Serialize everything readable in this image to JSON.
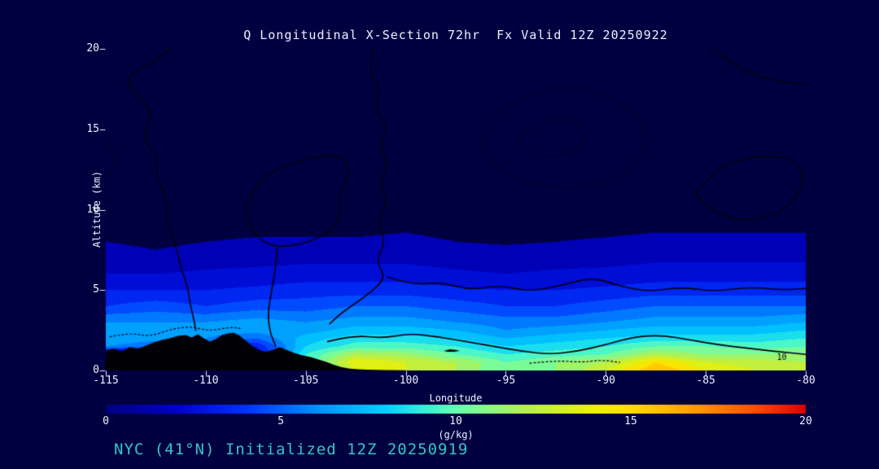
{
  "title": "Q Longitudinal X-Section 72hr  Fx Valid 12Z 20250922",
  "annotation": "NYC (41°N) Initialized 12Z 20250919",
  "colors": {
    "background": "#000041",
    "text": "#f0f0ff",
    "annotation": "#35c4c4",
    "contour": "#000010",
    "terrain": "#000005"
  },
  "chart_data": {
    "type": "filled_contour_cross_section",
    "title": "Q Longitudinal X-Section 72hr  Fx Valid 12Z 20250922",
    "xlabel": "Longitude",
    "ylabel": "Altitude (km)",
    "xlim": [
      -115,
      -80
    ],
    "ylim": [
      0,
      20
    ],
    "x_ticks": [
      -115,
      -110,
      -105,
      -100,
      -95,
      -90,
      -85,
      -80
    ],
    "y_ticks": [
      0,
      5,
      10,
      15,
      20
    ],
    "colorbar": {
      "min": 0,
      "max": 20,
      "ticks": [
        0,
        5,
        10,
        15,
        20
      ],
      "label": "(g/kg)"
    },
    "fill_levels": [
      1,
      2,
      3,
      4,
      5,
      6,
      7,
      8,
      9,
      10,
      11,
      12,
      13,
      14,
      15,
      16,
      17,
      18,
      19,
      20
    ],
    "colormap_anchors": [
      [
        0,
        "#000080"
      ],
      [
        2,
        "#0000c8"
      ],
      [
        4,
        "#0033ff"
      ],
      [
        6,
        "#0090ff"
      ],
      [
        8,
        "#00d0ff"
      ],
      [
        9,
        "#33ecdc"
      ],
      [
        10,
        "#66ffb0"
      ],
      [
        12,
        "#b4f050"
      ],
      [
        14,
        "#f0f000"
      ],
      [
        15,
        "#ffdc00"
      ],
      [
        17,
        "#ff9600"
      ],
      [
        18.5,
        "#ff5000"
      ],
      [
        20,
        "#dc0000"
      ]
    ],
    "x": [
      -115,
      -112.5,
      -110,
      -107.5,
      -105,
      -102.5,
      -100,
      -97.5,
      -95,
      -92.5,
      -90,
      -87.5,
      -85,
      -82.5,
      -80
    ],
    "y": [
      0,
      0.5,
      1,
      1.5,
      2,
      2.5,
      3,
      4,
      5,
      6,
      7,
      8,
      10,
      12,
      16,
      20
    ],
    "q_values": [
      [
        0,
        0,
        0,
        0,
        8,
        13,
        13,
        12,
        10,
        11,
        13,
        16,
        14,
        13,
        12
      ],
      [
        0,
        0,
        0,
        0,
        9,
        14,
        13,
        12,
        10,
        11,
        12,
        15,
        13,
        12.5,
        12
      ],
      [
        0,
        0,
        0,
        2,
        9,
        12,
        11.5,
        10,
        9,
        9.5,
        10,
        12,
        11,
        11,
        11
      ],
      [
        6,
        5,
        4,
        3,
        8,
        9.5,
        9.5,
        9,
        8,
        8.5,
        9,
        10,
        10,
        9.5,
        10
      ],
      [
        7,
        6.5,
        6,
        5,
        7.5,
        8.5,
        8.5,
        8,
        7,
        7.5,
        8,
        8.5,
        8.5,
        8.5,
        9
      ],
      [
        7,
        7,
        6.5,
        6.5,
        6.5,
        7.5,
        7.5,
        7,
        6,
        6.5,
        7,
        7.5,
        7.5,
        7.5,
        8
      ],
      [
        6,
        6,
        6,
        6.5,
        6,
        6.5,
        6.5,
        6,
        5.5,
        5.5,
        6,
        6.5,
        6.5,
        6.5,
        7
      ],
      [
        4,
        4.5,
        4,
        4.5,
        4.5,
        5,
        5,
        4.5,
        4,
        4,
        4.5,
        5,
        5,
        5,
        5
      ],
      [
        3,
        3,
        3,
        3.2,
        3.5,
        3.5,
        3.5,
        3.2,
        3,
        3,
        3.2,
        3.5,
        3.5,
        3.5,
        3.5
      ],
      [
        2,
        2,
        2.2,
        2.3,
        2.5,
        2.5,
        2.5,
        2.2,
        2,
        2.2,
        2.3,
        2.5,
        2.5,
        2.5,
        2.5
      ],
      [
        1.5,
        1.2,
        1.5,
        1.6,
        1.7,
        1.7,
        1.7,
        1.5,
        1.4,
        1.5,
        1.6,
        1.8,
        1.8,
        1.8,
        1.8
      ],
      [
        1,
        0.8,
        1,
        1.1,
        1.1,
        1.1,
        1.2,
        1,
        0.9,
        1,
        1.1,
        1.2,
        1.2,
        1.2,
        1.2
      ],
      [
        0.3,
        0.3,
        0.4,
        0.4,
        0.4,
        0.4,
        0.5,
        0.4,
        0.3,
        0.4,
        0.4,
        0.5,
        0.5,
        0.5,
        0.5
      ],
      [
        0.1,
        0.1,
        0.1,
        0.1,
        0.1,
        0.1,
        0.1,
        0.1,
        0.1,
        0.1,
        0.1,
        0.1,
        0.1,
        0.1,
        0.1
      ],
      [
        0,
        0,
        0,
        0,
        0,
        0,
        0,
        0,
        0,
        0,
        0,
        0,
        0,
        0,
        0
      ],
      [
        0,
        0,
        0,
        0,
        0,
        0,
        0,
        0,
        0,
        0,
        0,
        0,
        0,
        0,
        0
      ]
    ],
    "terrain_profile": [
      [
        -115,
        1.25
      ],
      [
        -114.6,
        1.35
      ],
      [
        -114.2,
        1.2
      ],
      [
        -113.8,
        1.45
      ],
      [
        -113.4,
        1.35
      ],
      [
        -113,
        1.55
      ],
      [
        -112.6,
        1.75
      ],
      [
        -112.2,
        1.9
      ],
      [
        -111.8,
        2.0
      ],
      [
        -111.4,
        2.15
      ],
      [
        -111,
        2.2
      ],
      [
        -110.7,
        2.05
      ],
      [
        -110.4,
        2.25
      ],
      [
        -110.1,
        2.0
      ],
      [
        -109.8,
        1.8
      ],
      [
        -109.5,
        1.95
      ],
      [
        -109.2,
        2.2
      ],
      [
        -108.9,
        2.3
      ],
      [
        -108.6,
        2.35
      ],
      [
        -108.3,
        2.15
      ],
      [
        -108,
        1.85
      ],
      [
        -107.7,
        1.55
      ],
      [
        -107.4,
        1.3
      ],
      [
        -107,
        1.15
      ],
      [
        -106.6,
        1.3
      ],
      [
        -106.3,
        1.45
      ],
      [
        -106,
        1.3
      ],
      [
        -105.6,
        1.1
      ],
      [
        -105.2,
        0.95
      ],
      [
        -104.8,
        0.85
      ],
      [
        -104.4,
        0.7
      ],
      [
        -104,
        0.55
      ],
      [
        -103.6,
        0.35
      ],
      [
        -103.2,
        0.2
      ],
      [
        -102.8,
        0.12
      ],
      [
        -102.4,
        0.08
      ],
      [
        -102,
        0.05
      ],
      [
        -101,
        0.02
      ],
      [
        -100,
        0.01
      ]
    ],
    "terrain_islands": [
      [
        [
          -98.1,
          1.22
        ],
        [
          -97.8,
          1.32
        ],
        [
          -97.5,
          1.28
        ],
        [
          -97.3,
          1.22
        ],
        [
          -97.6,
          1.16
        ],
        [
          -97.9,
          1.16
        ]
      ]
    ],
    "contours_solid": [
      [
        [
          -111.7,
          20
        ],
        [
          -112.6,
          19.2
        ],
        [
          -113.6,
          18.6
        ],
        [
          -114,
          18
        ],
        [
          -113.5,
          17.2
        ],
        [
          -112.9,
          16.4
        ],
        [
          -112.7,
          15.6
        ],
        [
          -113.1,
          14.8
        ],
        [
          -112.9,
          14
        ],
        [
          -112.4,
          13.2
        ],
        [
          -112.5,
          12.2
        ],
        [
          -112.1,
          11.2
        ],
        [
          -111.9,
          10.2
        ],
        [
          -112,
          9.2
        ],
        [
          -111.6,
          8.2
        ],
        [
          -111.4,
          7.2
        ],
        [
          -111.2,
          6.2
        ],
        [
          -110.9,
          5.2
        ],
        [
          -110.8,
          4.2
        ],
        [
          -110.6,
          3.2
        ],
        [
          -110.5,
          2.5
        ]
      ],
      [
        [
          -108,
          10
        ],
        [
          -107.7,
          11.2
        ],
        [
          -106.9,
          12.2
        ],
        [
          -105.7,
          12.9
        ],
        [
          -104.4,
          13.3
        ],
        [
          -103.3,
          13.4
        ],
        [
          -102.8,
          12.7
        ],
        [
          -103,
          11.7
        ],
        [
          -103.4,
          10.7
        ],
        [
          -103.2,
          9.7
        ],
        [
          -103.6,
          8.8
        ],
        [
          -104.4,
          8.2
        ],
        [
          -105.4,
          7.8
        ],
        [
          -106.4,
          7.7
        ],
        [
          -107.2,
          8
        ],
        [
          -107.7,
          8.8
        ],
        [
          -108,
          10
        ]
      ],
      [
        [
          -106.4,
          7.7
        ],
        [
          -106.5,
          6.4
        ],
        [
          -106.7,
          5
        ],
        [
          -106.9,
          3.6
        ],
        [
          -106.8,
          2.4
        ],
        [
          -106.5,
          1.5
        ]
      ],
      [
        [
          -101.6,
          20
        ],
        [
          -101.9,
          18.8
        ],
        [
          -101.3,
          17.6
        ],
        [
          -101.6,
          16.4
        ],
        [
          -100.9,
          15.2
        ],
        [
          -101.3,
          14
        ],
        [
          -100.9,
          12.8
        ],
        [
          -101.3,
          11.6
        ],
        [
          -100.9,
          10.4
        ],
        [
          -101.4,
          9.2
        ],
        [
          -101,
          8
        ],
        [
          -101.5,
          6.8
        ],
        [
          -101,
          5.8
        ],
        [
          -101.7,
          4.9
        ],
        [
          -102.5,
          4.2
        ],
        [
          -103.3,
          3.5
        ],
        [
          -103.8,
          2.9
        ]
      ],
      [
        [
          -100.9,
          5.8
        ],
        [
          -99.6,
          5.3
        ],
        [
          -98.2,
          5.5
        ],
        [
          -96.8,
          5
        ],
        [
          -95.3,
          5.3
        ],
        [
          -93.8,
          4.9
        ],
        [
          -92.2,
          5.3
        ],
        [
          -90.6,
          5.8
        ],
        [
          -89.2,
          5.2
        ],
        [
          -87.8,
          4.9
        ],
        [
          -86.2,
          5.2
        ],
        [
          -84.6,
          4.9
        ],
        [
          -82.8,
          5.2
        ],
        [
          -81.2,
          5
        ],
        [
          -80,
          5.1
        ]
      ],
      [
        [
          -103.9,
          1.8
        ],
        [
          -102.6,
          2.2
        ],
        [
          -101.2,
          2
        ],
        [
          -99.8,
          2.3
        ],
        [
          -98.4,
          2.1
        ],
        [
          -97,
          1.8
        ],
        [
          -95.6,
          1.5
        ],
        [
          -94.2,
          1.2
        ],
        [
          -92.8,
          1
        ],
        [
          -91.4,
          1.2
        ],
        [
          -90,
          1.6
        ],
        [
          -88.6,
          2.1
        ],
        [
          -87.2,
          2.2
        ],
        [
          -85.8,
          1.9
        ],
        [
          -84.4,
          1.6
        ],
        [
          -83,
          1.4
        ],
        [
          -81.6,
          1.2
        ],
        [
          -80,
          1
        ]
      ],
      [
        [
          -85.5,
          11
        ],
        [
          -84.6,
          12.4
        ],
        [
          -83.2,
          13.2
        ],
        [
          -81.6,
          13.4
        ],
        [
          -80.3,
          12.9
        ],
        [
          -80.1,
          11.6
        ],
        [
          -80.7,
          10.3
        ],
        [
          -81.9,
          9.5
        ],
        [
          -83.4,
          9.3
        ],
        [
          -84.7,
          9.9
        ],
        [
          -85.5,
          11
        ]
      ],
      [
        [
          -84.6,
          20
        ],
        [
          -83.6,
          19
        ],
        [
          -82.4,
          18.3
        ],
        [
          -81,
          17.9
        ],
        [
          -80,
          17.8
        ]
      ]
    ],
    "contours_dotted": [
      [
        [
          -96.3,
          14.2
        ],
        [
          -95.6,
          15.9
        ],
        [
          -94.1,
          17.1
        ],
        [
          -92.1,
          17.6
        ],
        [
          -90.1,
          17.2
        ],
        [
          -88.5,
          16
        ],
        [
          -87.9,
          14.4
        ],
        [
          -88.4,
          12.8
        ],
        [
          -89.9,
          11.7
        ],
        [
          -91.9,
          11.3
        ],
        [
          -93.9,
          11.6
        ],
        [
          -95.5,
          12.6
        ],
        [
          -96.3,
          14.2
        ]
      ],
      [
        [
          -94.3,
          14.5
        ],
        [
          -93.5,
          15.4
        ],
        [
          -92.2,
          15.7
        ],
        [
          -91.2,
          15.2
        ],
        [
          -91,
          14.2
        ],
        [
          -91.8,
          13.4
        ],
        [
          -93.1,
          13.2
        ],
        [
          -94,
          13.8
        ],
        [
          -94.3,
          14.5
        ]
      ],
      [
        [
          -93.8,
          0.45
        ],
        [
          -92.5,
          0.62
        ],
        [
          -91.2,
          0.5
        ],
        [
          -90.2,
          0.66
        ],
        [
          -89.3,
          0.5
        ]
      ],
      [
        [
          -114.8,
          2.1
        ],
        [
          -113.8,
          2.35
        ],
        [
          -112.8,
          2.1
        ],
        [
          -111.8,
          2.55
        ],
        [
          -110.8,
          2.75
        ],
        [
          -109.8,
          2.45
        ],
        [
          -108.8,
          2.7
        ],
        [
          -108.2,
          2.6
        ]
      ],
      [
        [
          -115,
          14.3
        ],
        [
          -114.4,
          13.4
        ],
        [
          -114.7,
          12.4
        ],
        [
          -115,
          11.9
        ]
      ]
    ],
    "contour_labels": [
      {
        "text": "10",
        "lon": -81.2,
        "alt": 0.8
      }
    ]
  }
}
